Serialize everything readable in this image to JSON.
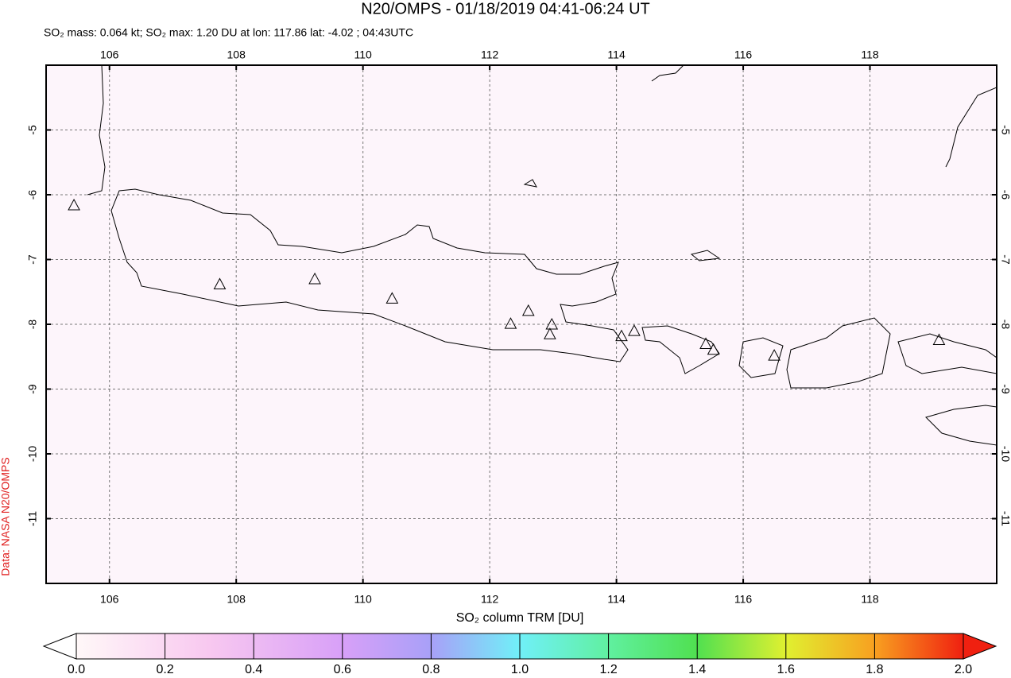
{
  "chart_data": {
    "type": "map",
    "title": "N20/OMPS - 01/18/2019 04:41-06:24 UT",
    "subtitle": "SO₂ mass: 0.064 kt; SO₂ max: 1.20 DU at lon: 117.86 lat: -4.02 ; 04:43UTC",
    "credit": "Data: NASA N20/OMPS",
    "xlim": [
      105,
      120
    ],
    "ylim": [
      -12,
      -4
    ],
    "xticks": [
      106,
      108,
      110,
      112,
      114,
      116,
      118
    ],
    "yticks": [
      -5,
      -6,
      -7,
      -8,
      -9,
      -10,
      -11
    ],
    "grid": true,
    "volcanoes": {
      "lon": [
        105.44,
        107.74,
        109.24,
        110.46,
        112.33,
        112.61,
        112.98,
        112.95,
        114.08,
        114.28,
        115.41,
        115.53,
        116.49,
        119.09
      ],
      "lat": [
        -6.16,
        -7.38,
        -7.3,
        -7.6,
        -7.99,
        -7.79,
        -8.0,
        -8.15,
        -8.18,
        -8.1,
        -8.3,
        -8.39,
        -8.48,
        -8.24
      ]
    },
    "colorbar": {
      "label": "SO₂ column TRM [DU]",
      "lim": [
        0,
        2
      ],
      "ticks": [
        {
          "value": 0,
          "label": "0.0"
        },
        {
          "value": 0.2,
          "label": "0.2"
        },
        {
          "value": 0.4,
          "label": "0.4"
        },
        {
          "value": 0.6,
          "label": "0.6"
        },
        {
          "value": 0.8,
          "label": "0.8"
        },
        {
          "value": 1,
          "label": "1.0"
        },
        {
          "value": 1.2,
          "label": "1.2"
        },
        {
          "value": 1.4,
          "label": "1.4"
        },
        {
          "value": 1.6,
          "label": "1.6"
        },
        {
          "value": 1.8,
          "label": "1.8"
        },
        {
          "value": 2,
          "label": "2.0"
        }
      ]
    }
  }
}
